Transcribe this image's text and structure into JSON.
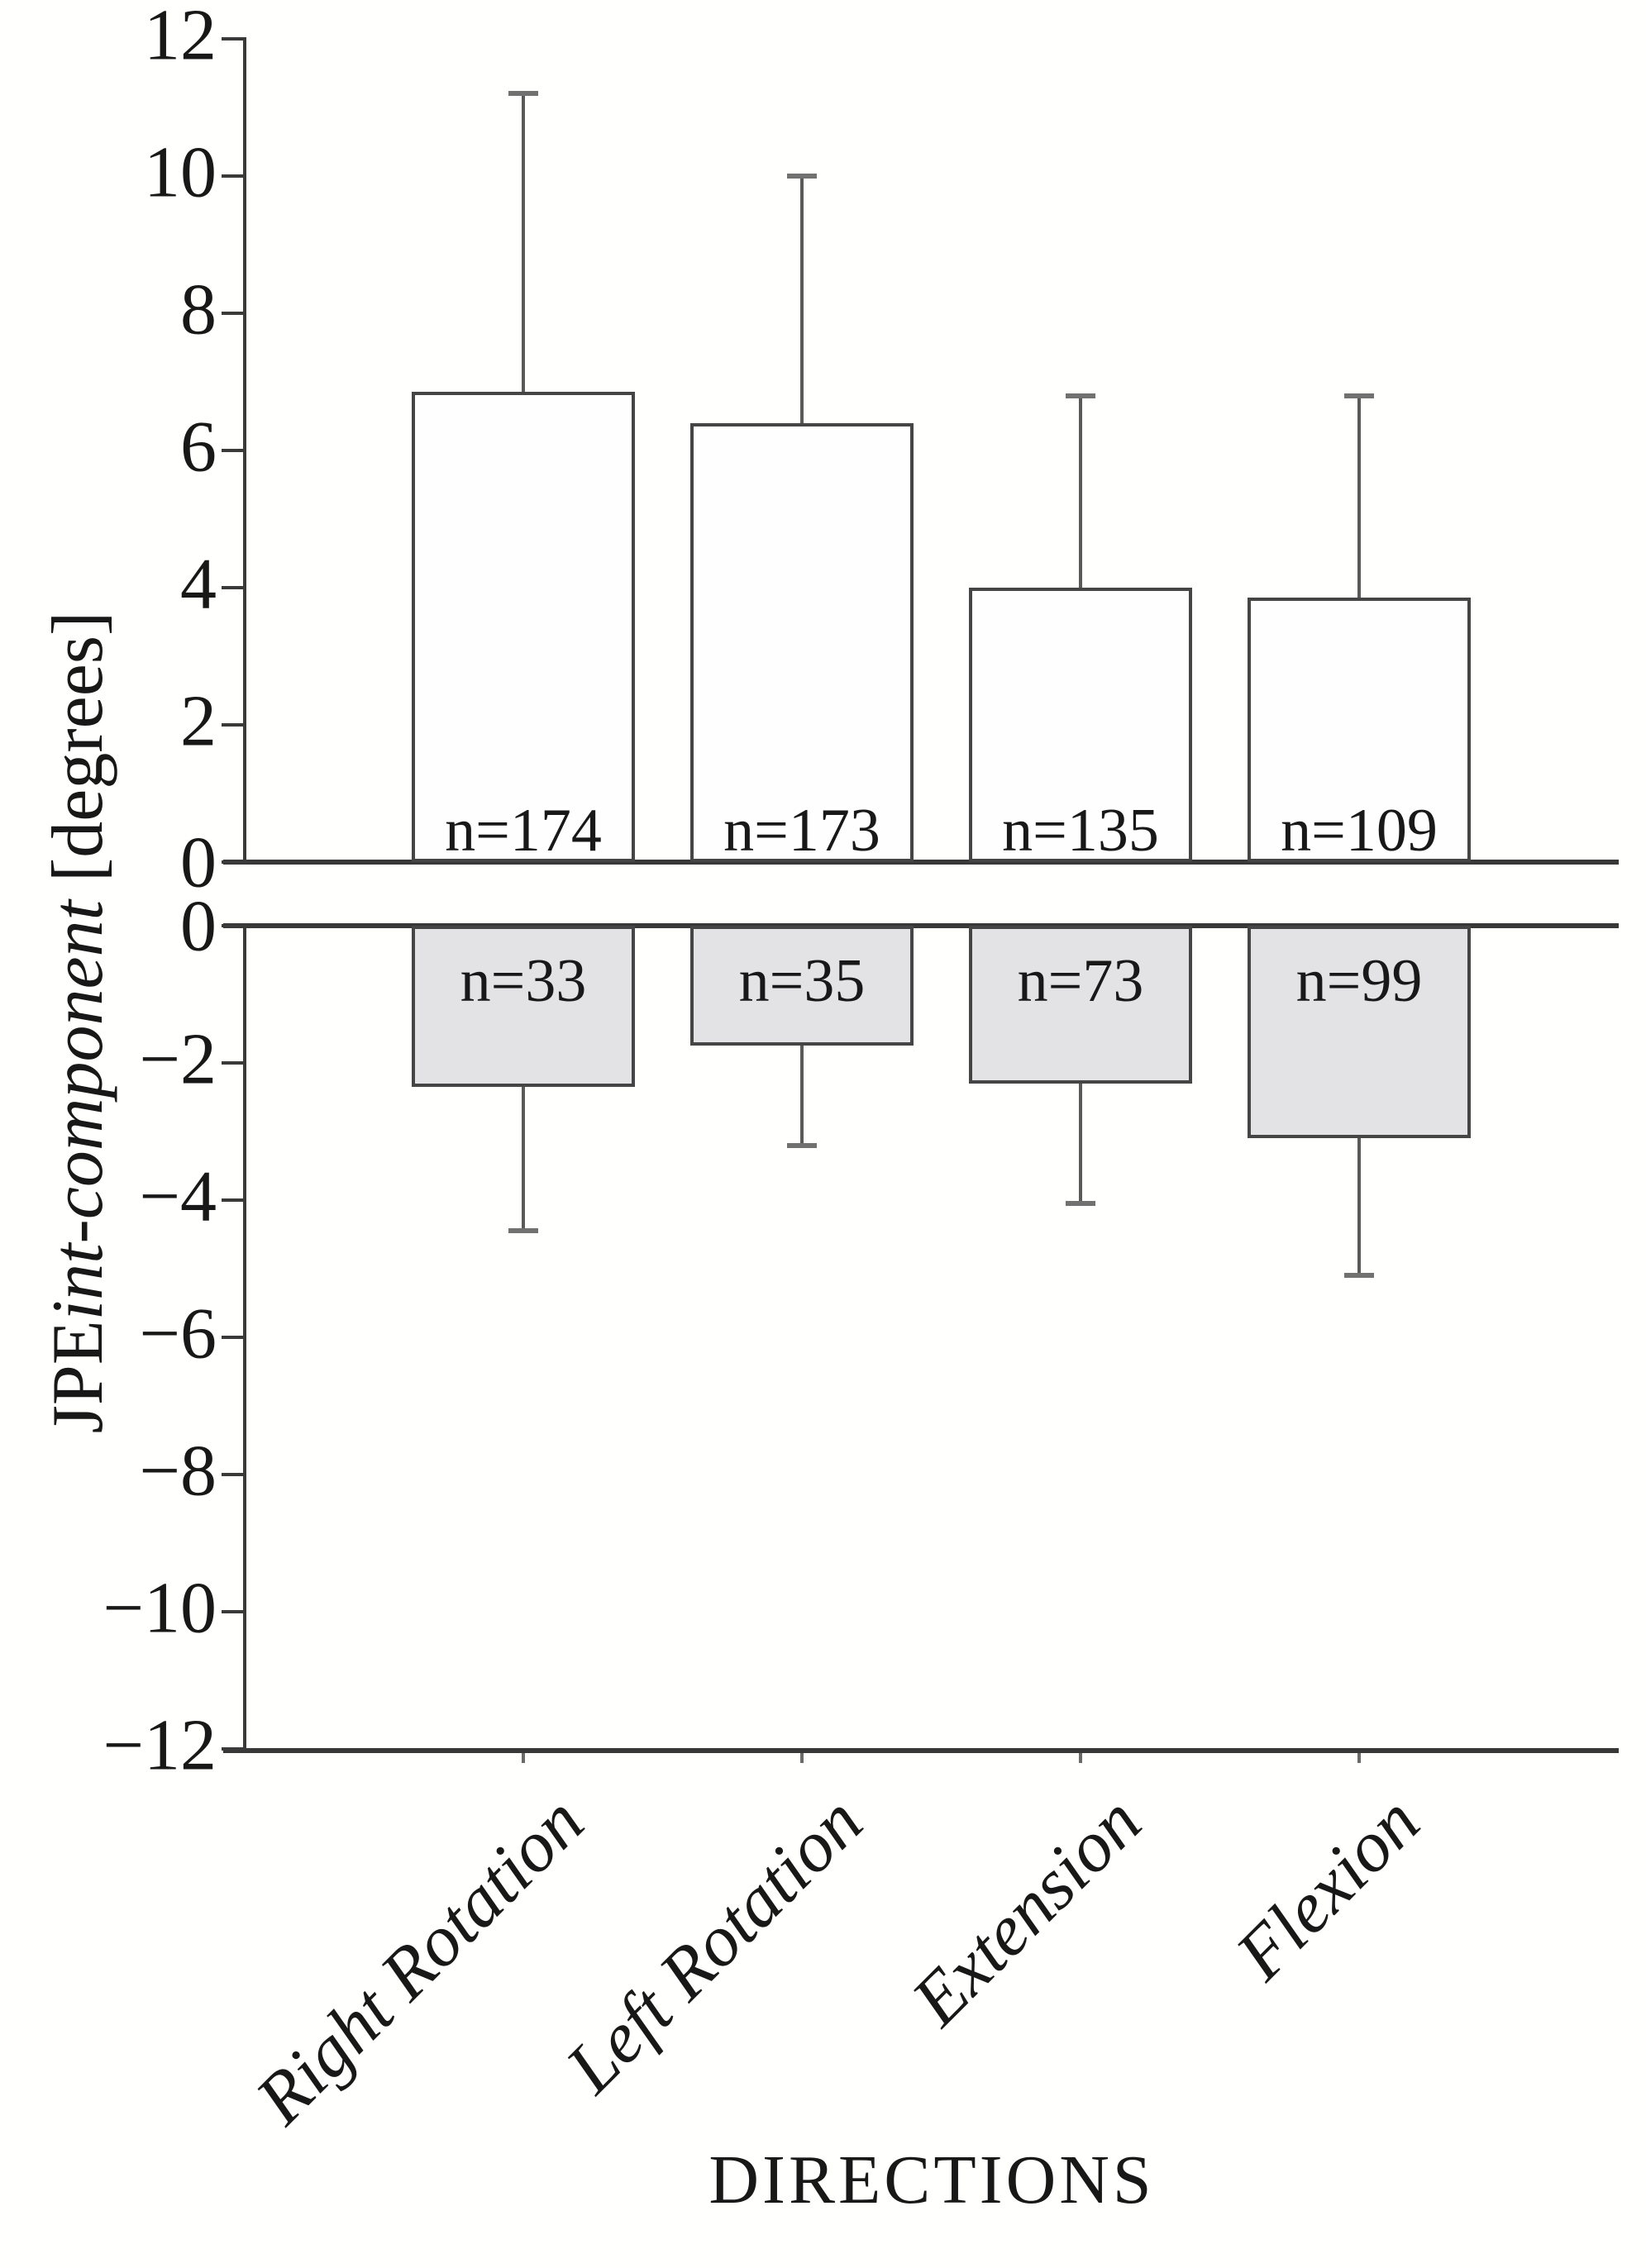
{
  "labels": {
    "y_prefix": "JPE",
    "y_italic": "int-component",
    "y_suffix": " [degrees]",
    "x": "DIRECTIONS"
  },
  "colors": {
    "axis_line": "#383838",
    "bar_border": "#454545",
    "positive_bar_fill": "#fefefe",
    "negative_bar_fill": "#e3e2e5",
    "whisker": "#5a5a5a",
    "whisker_cap": "#717171",
    "text": "#181818",
    "background": "#ffffff"
  },
  "chart_data": {
    "type": "bar",
    "title": "",
    "xlabel": "DIRECTIONS",
    "ylabel": "JPEint-component [degrees]",
    "categories": [
      "Right Rotation",
      "Left Rotation",
      "Extension",
      "Flexion"
    ],
    "grid": false,
    "legend": false,
    "count_label_prefix": "n=",
    "panels": [
      {
        "name": "positive-component",
        "ylim": [
          0,
          12
        ],
        "yticks": [
          12,
          10,
          8,
          6,
          4,
          2,
          0
        ],
        "bar_fill": "#fefefe",
        "values": [
          6.85,
          6.4,
          4.0,
          3.85
        ],
        "whisker_ends": [
          11.2,
          10.0,
          6.8,
          6.8
        ],
        "error_up": [
          4.35,
          3.6,
          2.8,
          2.95
        ],
        "counts": [
          174,
          173,
          135,
          109
        ]
      },
      {
        "name": "negative-component",
        "ylim": [
          -12,
          0
        ],
        "yticks": [
          0,
          -2,
          -4,
          -6,
          -8,
          -10,
          -12
        ],
        "bar_fill": "#e3e2e5",
        "values": [
          -2.35,
          -1.75,
          -2.3,
          -3.1
        ],
        "whisker_ends": [
          -4.45,
          -3.2,
          -4.05,
          -5.1
        ],
        "error_down": [
          2.1,
          1.45,
          1.75,
          2.0
        ],
        "counts": [
          33,
          35,
          73,
          99
        ]
      }
    ]
  }
}
